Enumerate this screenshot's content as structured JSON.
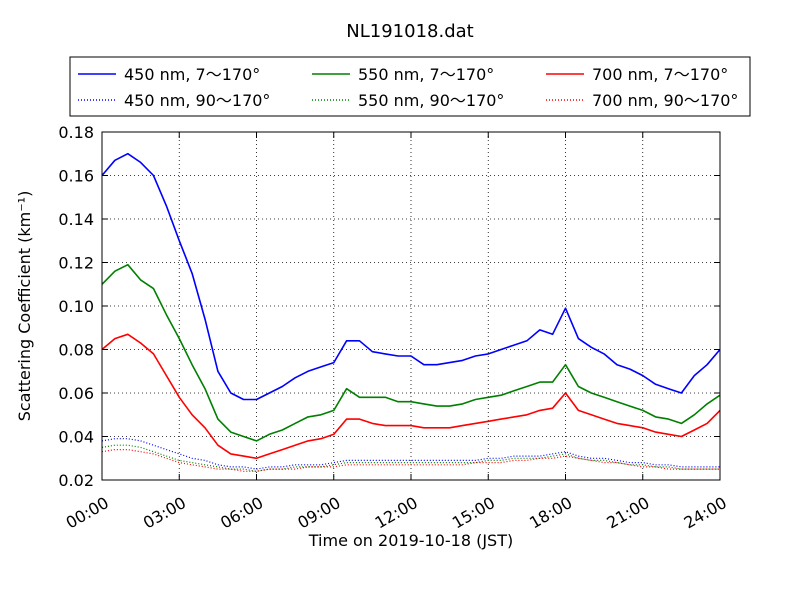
{
  "chart_data": {
    "type": "line",
    "title": "NL191018.dat",
    "xlabel": "Time on 2019-10-18 (JST)",
    "ylabel": "Scattering Coefficient (km⁻¹)",
    "xlim": [
      0,
      24
    ],
    "ylim": [
      0.02,
      0.18
    ],
    "x_ticks": [
      "00:00",
      "03:00",
      "06:00",
      "09:00",
      "12:00",
      "15:00",
      "18:00",
      "21:00",
      "24:00"
    ],
    "y_ticks": [
      "0.02",
      "0.04",
      "0.06",
      "0.08",
      "0.10",
      "0.12",
      "0.14",
      "0.16",
      "0.18"
    ],
    "grid": true,
    "legend_position": "top",
    "x_hours": [
      0,
      0.5,
      1,
      1.5,
      2,
      2.5,
      3,
      3.5,
      4,
      4.5,
      5,
      5.5,
      6,
      6.5,
      7,
      7.5,
      8,
      8.5,
      9,
      9.5,
      10,
      10.5,
      11,
      11.5,
      12,
      12.5,
      13,
      13.5,
      14,
      14.5,
      15,
      15.5,
      16,
      16.5,
      17,
      17.5,
      18,
      18.5,
      19,
      19.5,
      20,
      20.5,
      21,
      21.5,
      22,
      22.5,
      23,
      23.5,
      24
    ],
    "series": [
      {
        "name": "450 nm, 7～170°",
        "color": "#0000ff",
        "style": "solid",
        "values": [
          0.16,
          0.167,
          0.17,
          0.166,
          0.16,
          0.146,
          0.13,
          0.115,
          0.094,
          0.07,
          0.06,
          0.057,
          0.057,
          0.06,
          0.063,
          0.067,
          0.07,
          0.072,
          0.074,
          0.084,
          0.084,
          0.079,
          0.078,
          0.077,
          0.077,
          0.073,
          0.073,
          0.074,
          0.075,
          0.077,
          0.078,
          0.08,
          0.082,
          0.084,
          0.089,
          0.087,
          0.099,
          0.085,
          0.081,
          0.078,
          0.073,
          0.071,
          0.068,
          0.064,
          0.062,
          0.06,
          0.068,
          0.073,
          0.08
        ]
      },
      {
        "name": "550 nm, 7～170°",
        "color": "#008000",
        "style": "solid",
        "values": [
          0.11,
          0.116,
          0.119,
          0.112,
          0.108,
          0.096,
          0.085,
          0.073,
          0.062,
          0.048,
          0.042,
          0.04,
          0.038,
          0.041,
          0.043,
          0.046,
          0.049,
          0.05,
          0.052,
          0.062,
          0.058,
          0.058,
          0.058,
          0.056,
          0.056,
          0.055,
          0.054,
          0.054,
          0.055,
          0.057,
          0.058,
          0.059,
          0.061,
          0.063,
          0.065,
          0.065,
          0.073,
          0.063,
          0.06,
          0.058,
          0.056,
          0.054,
          0.052,
          0.049,
          0.048,
          0.046,
          0.05,
          0.055,
          0.059
        ]
      },
      {
        "name": "700 nm, 7～170°",
        "color": "#ff0000",
        "style": "solid",
        "values": [
          0.08,
          0.085,
          0.087,
          0.083,
          0.078,
          0.068,
          0.058,
          0.05,
          0.044,
          0.036,
          0.032,
          0.031,
          0.03,
          0.032,
          0.034,
          0.036,
          0.038,
          0.039,
          0.041,
          0.048,
          0.048,
          0.046,
          0.045,
          0.045,
          0.045,
          0.044,
          0.044,
          0.044,
          0.045,
          0.046,
          0.047,
          0.048,
          0.049,
          0.05,
          0.052,
          0.053,
          0.06,
          0.052,
          0.05,
          0.048,
          0.046,
          0.045,
          0.044,
          0.042,
          0.041,
          0.04,
          0.043,
          0.046,
          0.052
        ]
      },
      {
        "name": "450 nm, 90～170°",
        "color": "#0000ff",
        "style": "dotted",
        "values": [
          0.038,
          0.039,
          0.039,
          0.038,
          0.036,
          0.034,
          0.032,
          0.03,
          0.029,
          0.027,
          0.026,
          0.026,
          0.025,
          0.026,
          0.026,
          0.027,
          0.027,
          0.027,
          0.028,
          0.029,
          0.029,
          0.029,
          0.029,
          0.029,
          0.029,
          0.029,
          0.029,
          0.029,
          0.029,
          0.029,
          0.03,
          0.03,
          0.031,
          0.031,
          0.031,
          0.032,
          0.033,
          0.031,
          0.03,
          0.03,
          0.029,
          0.028,
          0.028,
          0.027,
          0.027,
          0.026,
          0.026,
          0.026,
          0.026
        ]
      },
      {
        "name": "550 nm, 90～170°",
        "color": "#008000",
        "style": "dotted",
        "values": [
          0.035,
          0.036,
          0.036,
          0.035,
          0.033,
          0.031,
          0.029,
          0.028,
          0.027,
          0.026,
          0.025,
          0.025,
          0.024,
          0.025,
          0.025,
          0.026,
          0.026,
          0.026,
          0.027,
          0.028,
          0.028,
          0.028,
          0.028,
          0.028,
          0.028,
          0.028,
          0.028,
          0.028,
          0.028,
          0.028,
          0.029,
          0.029,
          0.03,
          0.03,
          0.03,
          0.031,
          0.032,
          0.03,
          0.029,
          0.029,
          0.028,
          0.027,
          0.027,
          0.026,
          0.026,
          0.025,
          0.025,
          0.025,
          0.025
        ]
      },
      {
        "name": "700 nm, 90～170°",
        "color": "#ff0000",
        "style": "dotted",
        "values": [
          0.033,
          0.034,
          0.034,
          0.033,
          0.032,
          0.03,
          0.028,
          0.027,
          0.026,
          0.025,
          0.025,
          0.024,
          0.024,
          0.025,
          0.025,
          0.025,
          0.026,
          0.026,
          0.026,
          0.027,
          0.027,
          0.027,
          0.027,
          0.027,
          0.027,
          0.027,
          0.027,
          0.027,
          0.027,
          0.028,
          0.028,
          0.028,
          0.029,
          0.029,
          0.03,
          0.03,
          0.031,
          0.03,
          0.029,
          0.028,
          0.028,
          0.027,
          0.026,
          0.026,
          0.025,
          0.025,
          0.025,
          0.025,
          0.025
        ]
      }
    ]
  }
}
